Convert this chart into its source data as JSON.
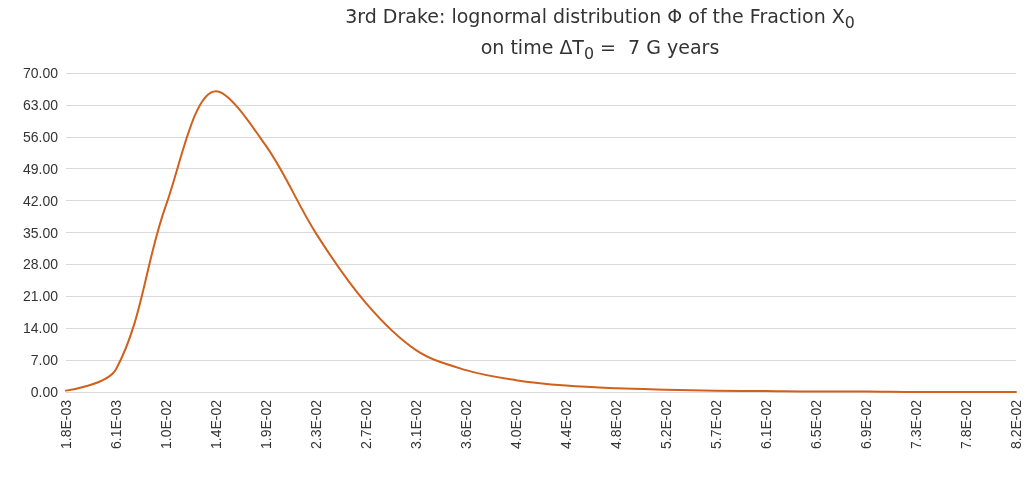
{
  "chart_data": {
    "type": "line",
    "title": "3rd Drake: lognormal distribution Φ of the Fraction X$_{0}$",
    "subtitle": "on time ΔT$_{0}$ =  7 G years",
    "categories": [
      "1.8E-03",
      "6.1E-03",
      "1.0E-02",
      "1.4E-02",
      "1.9E-02",
      "2.3E-02",
      "2.7E-02",
      "3.1E-02",
      "3.6E-02",
      "4.0E-02",
      "4.4E-02",
      "4.8E-02",
      "5.2E-02",
      "5.7E-02",
      "6.1E-02",
      "6.5E-02",
      "6.9E-02",
      "7.3E-02",
      "7.8E-02",
      "8.2E-02"
    ],
    "series": [
      {
        "color": "#d0601c",
        "values": [
          0.3,
          5,
          41,
          66,
          54,
          34.8,
          19.5,
          9.2,
          4.8,
          2.6,
          1.4,
          0.8,
          0.5,
          0.3,
          0.2,
          0.1,
          0.1,
          0,
          0,
          0
        ]
      }
    ],
    "ylim": [
      0,
      70
    ],
    "yticks": [
      {
        "value": 0,
        "label": "0.00"
      },
      {
        "value": 7,
        "label": "7.00"
      },
      {
        "value": 14,
        "label": "14.00"
      },
      {
        "value": 21,
        "label": "21.00"
      },
      {
        "value": 28,
        "label": "28.00"
      },
      {
        "value": 35,
        "label": "35.00"
      },
      {
        "value": 42,
        "label": "42.00"
      },
      {
        "value": 49,
        "label": "49.00"
      },
      {
        "value": 56,
        "label": "56.00"
      },
      {
        "value": 63,
        "label": "63.00"
      },
      {
        "value": 70,
        "label": "70.00"
      }
    ],
    "grid": "y",
    "marker": "none",
    "line_style": "solid"
  }
}
